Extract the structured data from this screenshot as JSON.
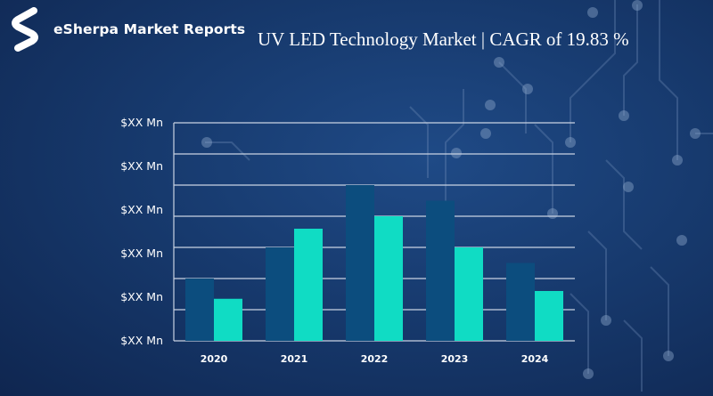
{
  "brand": {
    "name": "eSherpa Market Reports",
    "logo_icon": "esherpa-s-logo-icon"
  },
  "colors": {
    "series_a": "#0c4d7e",
    "series_b": "#10dcc4",
    "grid": "#c9d3e3"
  },
  "chart_data": {
    "type": "bar",
    "title": "UV LED Technology Market | CAGR of 19.83 %",
    "categories": [
      "2020",
      "2021",
      "2022",
      "2023",
      "2024"
    ],
    "y_tick_labels": [
      "$XX Mn",
      "$XX Mn",
      "$XX Mn",
      "$XX Mn",
      "$XX Mn",
      "$XX Mn"
    ],
    "ylim": [
      0,
      7
    ],
    "grid": true,
    "series": [
      {
        "values": [
          2.0,
          3.0,
          5.0,
          4.5,
          2.5
        ]
      },
      {
        "values": [
          1.35,
          3.6,
          4.0,
          3.0,
          1.6
        ]
      }
    ]
  }
}
